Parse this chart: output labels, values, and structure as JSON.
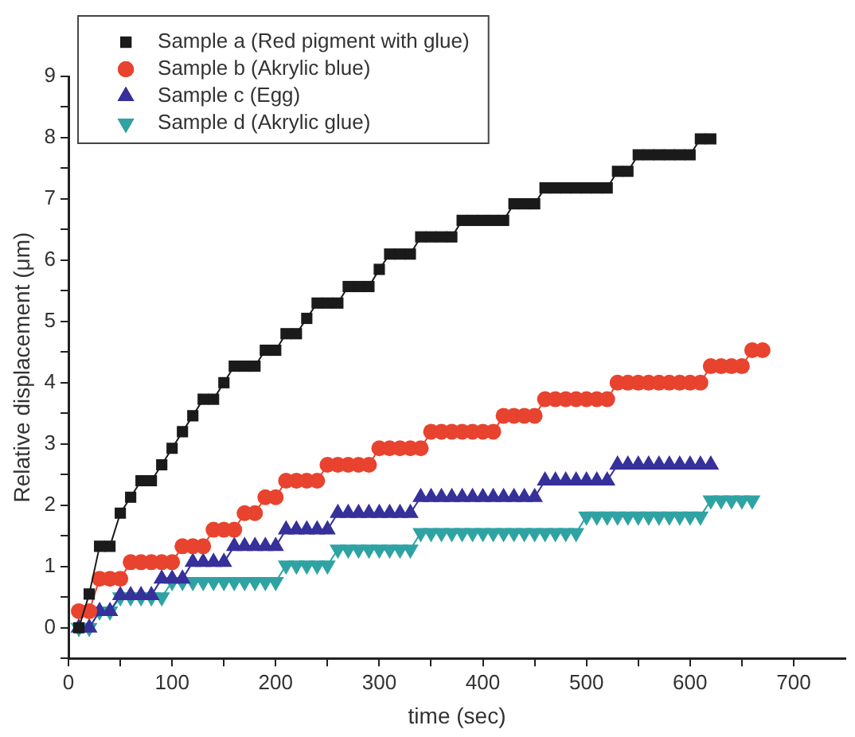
{
  "chart_data": {
    "type": "line",
    "xlabel": "time (sec)",
    "ylabel": "Relative displacement (μm)",
    "xlim": [
      0,
      750
    ],
    "ylim": [
      -0.5,
      9
    ],
    "xticks": [
      0,
      {
        "value": 50,
        "label": null
      },
      100,
      {
        "value": 150,
        "label": null
      },
      200,
      {
        "value": 250,
        "label": null
      },
      300,
      {
        "value": 350,
        "label": null
      },
      400,
      {
        "value": 450,
        "label": null
      },
      500,
      {
        "value": 550,
        "label": null
      },
      600,
      {
        "value": 650,
        "label": null
      },
      700
    ],
    "yticks": [
      {
        "value": -0.5,
        "label": null
      },
      0,
      {
        "value": 0.5,
        "label": null
      },
      1,
      {
        "value": 1.5,
        "label": null
      },
      2,
      {
        "value": 2.5,
        "label": null
      },
      3,
      {
        "value": 3.5,
        "label": null
      },
      4,
      {
        "value": 4.5,
        "label": null
      },
      5,
      {
        "value": 5.5,
        "label": null
      },
      6,
      {
        "value": 6.5,
        "label": null
      },
      7,
      {
        "value": 7.5,
        "label": null
      },
      8,
      {
        "value": 8.5,
        "label": null
      },
      9
    ],
    "grid": false,
    "legend": "top left",
    "line_style": "solid",
    "series": [
      {
        "name": "Sample a (Red pigment with glue)",
        "color": "#1a1a1a",
        "marker": "square",
        "x": [
          10,
          20,
          30,
          40,
          50,
          60,
          70,
          80,
          90,
          100,
          110,
          120,
          130,
          140,
          150,
          160,
          170,
          180,
          190,
          200,
          210,
          220,
          230,
          240,
          250,
          260,
          270,
          280,
          290,
          300,
          310,
          320,
          330,
          340,
          350,
          360,
          370,
          380,
          390,
          400,
          410,
          420,
          430,
          440,
          450,
          460,
          470,
          480,
          490,
          500,
          510,
          520,
          530,
          540,
          550,
          560,
          570,
          580,
          590,
          600,
          610,
          620
        ],
        "values": [
          0,
          0.55,
          1.33,
          1.33,
          1.87,
          2.13,
          2.4,
          2.4,
          2.66,
          2.93,
          3.2,
          3.46,
          3.73,
          3.73,
          4.0,
          4.27,
          4.27,
          4.27,
          4.53,
          4.53,
          4.8,
          4.8,
          5.05,
          5.3,
          5.3,
          5.3,
          5.57,
          5.57,
          5.57,
          5.85,
          6.1,
          6.1,
          6.1,
          6.38,
          6.38,
          6.38,
          6.38,
          6.65,
          6.65,
          6.65,
          6.65,
          6.65,
          6.92,
          6.92,
          6.92,
          7.18,
          7.18,
          7.18,
          7.18,
          7.18,
          7.18,
          7.18,
          7.45,
          7.45,
          7.72,
          7.72,
          7.72,
          7.72,
          7.72,
          7.72,
          7.98,
          7.98
        ]
      },
      {
        "name": "Sample b (Akrylic blue)",
        "color": "#e8432e",
        "marker": "circle",
        "x": [
          10,
          20,
          30,
          40,
          50,
          60,
          70,
          80,
          90,
          100,
          110,
          120,
          130,
          140,
          150,
          160,
          170,
          180,
          190,
          200,
          210,
          220,
          230,
          240,
          250,
          260,
          270,
          280,
          290,
          300,
          310,
          320,
          330,
          340,
          350,
          360,
          370,
          380,
          390,
          400,
          410,
          420,
          430,
          440,
          450,
          460,
          470,
          480,
          490,
          500,
          510,
          520,
          530,
          540,
          550,
          560,
          570,
          580,
          590,
          600,
          610,
          620,
          630,
          640,
          650,
          660,
          670
        ],
        "values": [
          0.27,
          0.27,
          0.8,
          0.8,
          0.8,
          1.07,
          1.07,
          1.07,
          1.07,
          1.07,
          1.33,
          1.33,
          1.33,
          1.6,
          1.6,
          1.6,
          1.87,
          1.87,
          2.13,
          2.13,
          2.4,
          2.4,
          2.4,
          2.4,
          2.66,
          2.66,
          2.66,
          2.66,
          2.66,
          2.93,
          2.93,
          2.93,
          2.93,
          2.93,
          3.2,
          3.2,
          3.2,
          3.2,
          3.2,
          3.2,
          3.2,
          3.46,
          3.46,
          3.46,
          3.46,
          3.73,
          3.73,
          3.73,
          3.73,
          3.73,
          3.73,
          3.73,
          4.0,
          4.0,
          4.0,
          4.0,
          4.0,
          4.0,
          4.0,
          4.0,
          4.0,
          4.27,
          4.27,
          4.27,
          4.27,
          4.53,
          4.53
        ]
      },
      {
        "name": "Sample c (Egg)",
        "color": "#36309a",
        "marker": "triangle",
        "x": [
          10,
          20,
          30,
          40,
          50,
          60,
          70,
          80,
          90,
          100,
          110,
          120,
          130,
          140,
          150,
          160,
          170,
          180,
          190,
          200,
          210,
          220,
          230,
          240,
          250,
          260,
          270,
          280,
          290,
          300,
          310,
          320,
          330,
          340,
          350,
          360,
          370,
          380,
          390,
          400,
          410,
          420,
          430,
          440,
          450,
          460,
          470,
          480,
          490,
          500,
          510,
          520,
          530,
          540,
          550,
          560,
          570,
          580,
          590,
          600,
          610,
          620
        ],
        "values": [
          0,
          0,
          0.27,
          0.27,
          0.53,
          0.53,
          0.53,
          0.53,
          0.8,
          0.8,
          0.8,
          1.07,
          1.07,
          1.07,
          1.07,
          1.33,
          1.33,
          1.33,
          1.33,
          1.33,
          1.6,
          1.6,
          1.6,
          1.6,
          1.6,
          1.87,
          1.87,
          1.87,
          1.87,
          1.87,
          1.87,
          1.87,
          1.87,
          2.13,
          2.13,
          2.13,
          2.13,
          2.13,
          2.13,
          2.13,
          2.13,
          2.13,
          2.13,
          2.13,
          2.13,
          2.4,
          2.4,
          2.4,
          2.4,
          2.4,
          2.4,
          2.4,
          2.66,
          2.66,
          2.66,
          2.66,
          2.66,
          2.66,
          2.66,
          2.66,
          2.66,
          2.66
        ]
      },
      {
        "name": "Sample d (Akrylic glue)",
        "color": "#2fa3a3",
        "marker": "triangle_down",
        "x": [
          10,
          20,
          30,
          40,
          50,
          60,
          70,
          80,
          90,
          100,
          110,
          120,
          130,
          140,
          150,
          160,
          170,
          180,
          190,
          200,
          210,
          220,
          230,
          240,
          250,
          260,
          270,
          280,
          290,
          300,
          310,
          320,
          330,
          340,
          350,
          360,
          370,
          380,
          390,
          400,
          410,
          420,
          430,
          440,
          450,
          460,
          470,
          480,
          490,
          500,
          510,
          520,
          530,
          540,
          550,
          560,
          570,
          580,
          590,
          600,
          610,
          620,
          630,
          640,
          650,
          660
        ],
        "values": [
          0,
          0,
          0.27,
          0.27,
          0.5,
          0.5,
          0.5,
          0.5,
          0.5,
          0.75,
          0.75,
          0.75,
          0.75,
          0.75,
          0.75,
          0.75,
          0.75,
          0.75,
          0.75,
          0.75,
          1.02,
          1.02,
          1.02,
          1.02,
          1.02,
          1.28,
          1.28,
          1.28,
          1.28,
          1.28,
          1.28,
          1.28,
          1.28,
          1.55,
          1.55,
          1.55,
          1.55,
          1.55,
          1.55,
          1.55,
          1.55,
          1.55,
          1.55,
          1.55,
          1.55,
          1.55,
          1.55,
          1.55,
          1.55,
          1.82,
          1.82,
          1.82,
          1.82,
          1.82,
          1.82,
          1.82,
          1.82,
          1.82,
          1.82,
          1.82,
          1.82,
          2.08,
          2.08,
          2.08,
          2.08,
          2.08
        ]
      }
    ]
  }
}
